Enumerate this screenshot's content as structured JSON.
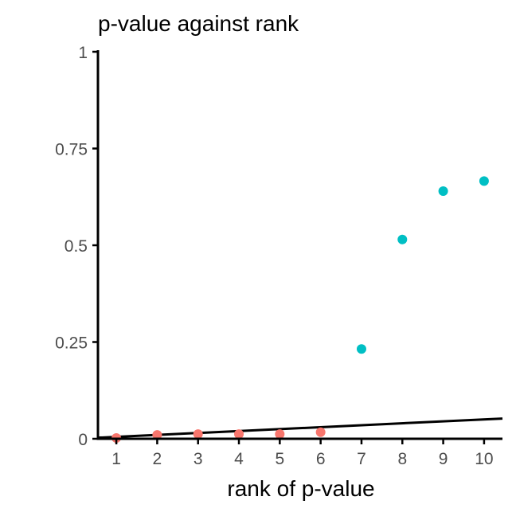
{
  "chart_data": {
    "type": "scatter",
    "title": "p-value against rank",
    "xlabel": "rank of p-value",
    "ylabel": "",
    "xlim": [
      0.55,
      10.45
    ],
    "ylim": [
      0,
      1
    ],
    "x_ticks": [
      "1",
      "2",
      "3",
      "4",
      "5",
      "6",
      "7",
      "8",
      "9",
      "10"
    ],
    "y_ticks": [
      "0",
      "0.25",
      "0.5",
      "0.75",
      "1"
    ],
    "grid": false,
    "legend": "none",
    "colors": {
      "low": "#F8766D",
      "high": "#00BFC4",
      "line": "#000000"
    },
    "points": [
      {
        "x": 1,
        "y": 0.002,
        "group": "low"
      },
      {
        "x": 2,
        "y": 0.01,
        "group": "low"
      },
      {
        "x": 3,
        "y": 0.012,
        "group": "low"
      },
      {
        "x": 4,
        "y": 0.012,
        "group": "low"
      },
      {
        "x": 5,
        "y": 0.012,
        "group": "low"
      },
      {
        "x": 6,
        "y": 0.017,
        "group": "low"
      },
      {
        "x": 7,
        "y": 0.232,
        "group": "high"
      },
      {
        "x": 8,
        "y": 0.515,
        "group": "high"
      },
      {
        "x": 9,
        "y": 0.64,
        "group": "high"
      },
      {
        "x": 10,
        "y": 0.666,
        "group": "high"
      }
    ],
    "reference_line": {
      "intercept": 0,
      "slope": 0.005
    }
  }
}
